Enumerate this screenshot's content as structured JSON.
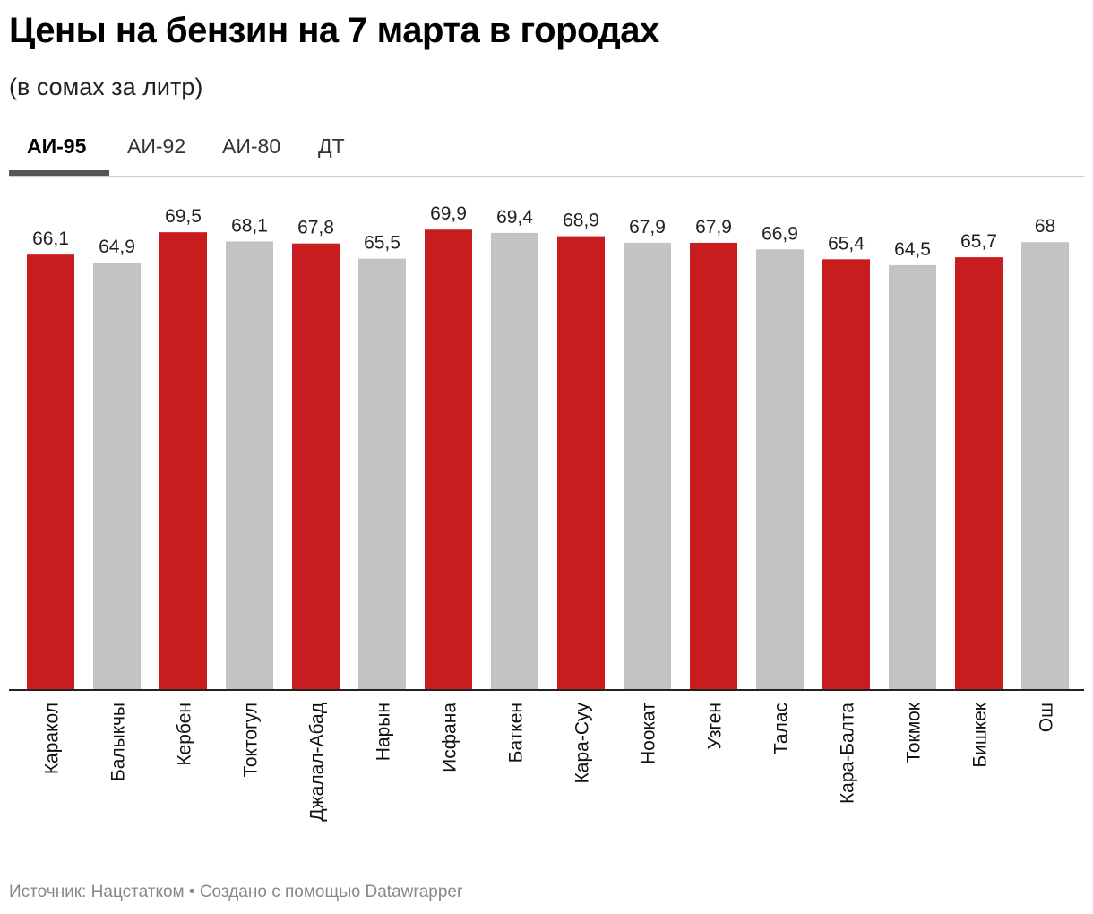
{
  "header": {
    "title": "Цены на бензин на 7 марта в городах",
    "subtitle": "(в сомах за литр)"
  },
  "tabs": [
    {
      "label": "АИ-95",
      "active": true
    },
    {
      "label": "АИ-92",
      "active": false
    },
    {
      "label": "АИ-80",
      "active": false
    },
    {
      "label": "ДТ",
      "active": false
    }
  ],
  "footer": {
    "source": "Источник: Нацстатком • Создано с помощью Datawrapper"
  },
  "colors": {
    "highlight": "#c81d1f",
    "neutral": "#c3c3c3",
    "baseline": "#222222"
  },
  "chart_data": {
    "type": "bar",
    "title": "Цены на бензин на 7 марта в городах",
    "subtitle": "(в сомах за литр)",
    "xlabel": "",
    "ylabel": "",
    "ylim": [
      0,
      70
    ],
    "grid": false,
    "categories": [
      "Каракол",
      "Балыкчы",
      "Кербен",
      "Токтогул",
      "Джалал-Абад",
      "Нарын",
      "Исфана",
      "Баткен",
      "Кара-Суу",
      "Ноокат",
      "Узген",
      "Талас",
      "Кара-Балта",
      "Токмок",
      "Бишкек",
      "Ош"
    ],
    "values": [
      66.1,
      64.9,
      69.5,
      68.1,
      67.8,
      65.5,
      69.9,
      69.4,
      68.9,
      67.9,
      67.9,
      66.9,
      65.4,
      64.5,
      65.7,
      68
    ],
    "value_labels": [
      "66,1",
      "64,9",
      "69,5",
      "68,1",
      "67,8",
      "65,5",
      "69,9",
      "69,4",
      "68,9",
      "67,9",
      "67,9",
      "66,9",
      "65,4",
      "64,5",
      "65,7",
      "68"
    ],
    "highlighted": [
      true,
      false,
      true,
      false,
      true,
      false,
      true,
      false,
      true,
      false,
      true,
      false,
      true,
      false,
      true,
      false
    ]
  }
}
